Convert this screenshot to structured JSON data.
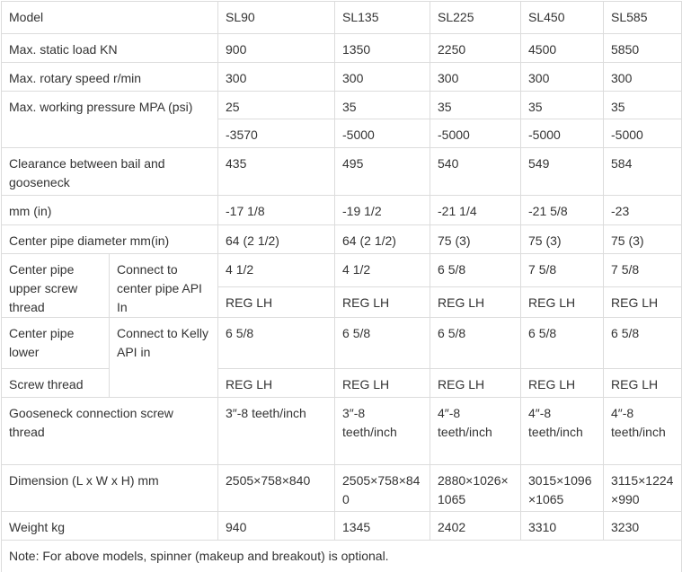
{
  "table": {
    "rows": [
      [
        "Model",
        "SL90",
        "SL135",
        "SL225",
        "SL450",
        "SL585"
      ],
      [
        "Max. static load KN",
        "900",
        "1350",
        "2250",
        "4500",
        "5850"
      ],
      [
        "Max. rotary speed r/min",
        "300",
        "300",
        "300",
        "300",
        "300"
      ],
      [
        "Max. working pressure MPA (psi)",
        "25",
        "35",
        "35",
        "35",
        "35"
      ],
      [
        "-3570",
        "-5000",
        "-5000",
        "-5000",
        "-5000"
      ],
      [
        "Clearance between bail and gooseneck",
        "435",
        "495",
        "540",
        "549",
        "584"
      ],
      [
        "mm (in)",
        "-17 1/8",
        "-19 1/2",
        "-21 1/4",
        "-21 5/8",
        "-23"
      ],
      [
        "Center pipe diameter mm(in)",
        "64 (2 1/2)",
        "64 (2 1/2)",
        "75 (3)",
        "75 (3)",
        "75 (3)"
      ],
      [
        "Center pipe upper screw thread",
        "Connect to center pipe API In",
        "4 1/2",
        "4 1/2",
        "6 5/8",
        "7 5/8",
        "7 5/8"
      ],
      [
        "REG LH",
        "REG LH",
        "REG LH",
        "REG LH",
        "REG LH"
      ],
      [
        "Center pipe lower",
        "Connect to Kelly API in",
        "6 5/8",
        "6 5/8",
        "6 5/8",
        "6 5/8",
        "6 5/8"
      ],
      [
        "Screw thread",
        "REG LH",
        "REG LH",
        "REG LH",
        "REG LH",
        "REG LH"
      ],
      [
        "Gooseneck connection screw thread",
        "3″-8 teeth/inch",
        "3″-8 teeth/inch",
        "4″-8 teeth/inch",
        "4″-8 teeth/inch",
        "4″-8 teeth/inch"
      ],
      [
        "Dimension (L x W x H) mm",
        "2505×758×840",
        "2505×758×840",
        "2880×1026×1065",
        "3015×1096×1065",
        "3115×1224×990"
      ],
      [
        "Weight kg",
        "940",
        "1345",
        "2402",
        "3310",
        "3230"
      ]
    ],
    "note": "Note: For above models, spinner (makeup and breakout) is optional."
  }
}
